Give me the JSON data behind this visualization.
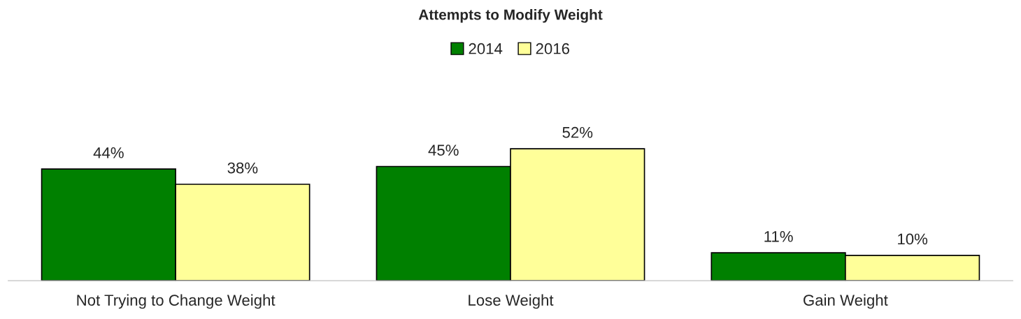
{
  "chart_data": {
    "type": "bar",
    "title": "Attempts to Modify Weight",
    "categories": [
      "Not Trying to Change Weight",
      "Lose Weight",
      "Gain Weight"
    ],
    "series": [
      {
        "name": "2014",
        "color": "#008000",
        "values": [
          44,
          45,
          11
        ],
        "value_labels": [
          "44%",
          "45%",
          "11%"
        ]
      },
      {
        "name": "2016",
        "color": "#ffff99",
        "values": [
          38,
          52,
          10
        ],
        "value_labels": [
          "38%",
          "52%",
          "10%"
        ]
      }
    ],
    "legend": "top",
    "grid": false
  }
}
